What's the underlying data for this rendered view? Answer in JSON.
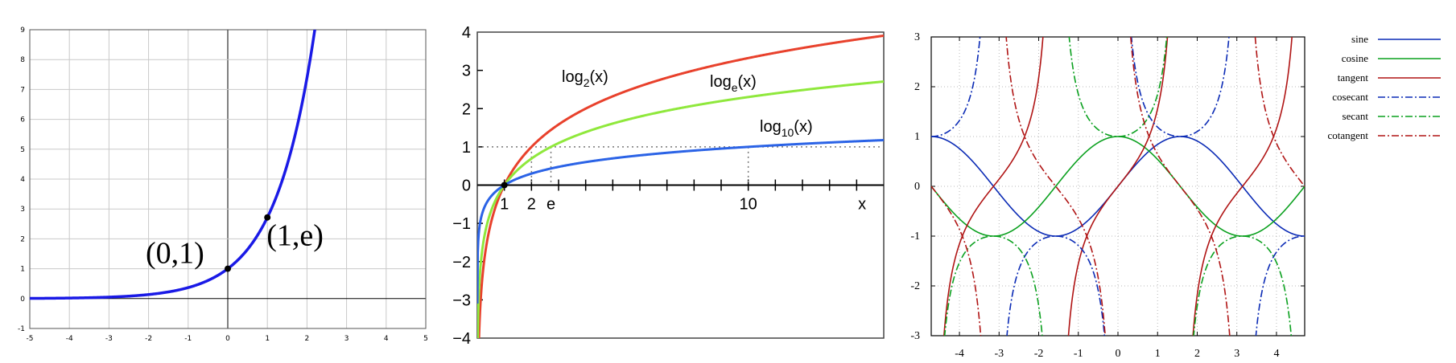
{
  "chart_data": [
    {
      "type": "line",
      "xlim": [
        -5,
        5
      ],
      "ylim": [
        -1,
        9
      ],
      "xticks": [
        "-5",
        "-4",
        "-3",
        "-2",
        "-1",
        "0",
        "1",
        "2",
        "3",
        "4",
        "5"
      ],
      "yticks": [
        "-1",
        "0",
        "1",
        "2",
        "3",
        "4",
        "5",
        "6",
        "7",
        "8",
        "9"
      ],
      "grid": true,
      "series": [
        {
          "function": "exp",
          "color": "#1a1ae6"
        }
      ],
      "points": [
        {
          "x": 0,
          "y": 1,
          "label": "(0,1)"
        },
        {
          "x": 1,
          "y": 2.718,
          "label": "(1,e)"
        }
      ]
    },
    {
      "type": "line",
      "xlim": [
        0,
        15
      ],
      "ylim": [
        -4,
        4
      ],
      "xtick_labels": [
        "1",
        "2",
        "e",
        "10",
        "x"
      ],
      "yticks": [
        "4",
        "3",
        "2",
        "1",
        "0",
        "−1",
        "−2",
        "−3",
        "−4"
      ],
      "series": [
        {
          "label_base": "log",
          "label_sub": "2",
          "label_tail": "(x)",
          "base": 2,
          "color": "#e8412c"
        },
        {
          "label_base": "log",
          "label_sub": "e",
          "label_tail": "(x)",
          "base": 2.718,
          "color": "#8fe83c"
        },
        {
          "label_base": "log",
          "label_sub": "10",
          "label_tail": "(x)",
          "base": 10,
          "color": "#2b63e6"
        }
      ]
    },
    {
      "type": "line",
      "xlim": [
        -4.712,
        4.712
      ],
      "ylim": [
        -3,
        3
      ],
      "xticks": [
        "-4",
        "-3",
        "-2",
        "-1",
        "0",
        "1",
        "2",
        "3",
        "4"
      ],
      "yticks": [
        "3",
        "2",
        "1",
        "0",
        "-1",
        "-2",
        "-3"
      ],
      "grid": true,
      "legend": "outside-right",
      "series": [
        {
          "name": "sine",
          "color": "#0a2ab5",
          "style": "solid"
        },
        {
          "name": "cosine",
          "color": "#0aa01e",
          "style": "solid"
        },
        {
          "name": "tangent",
          "color": "#b01414",
          "style": "solid"
        },
        {
          "name": "cosecant",
          "color": "#0a2ab5",
          "style": "dashdot"
        },
        {
          "name": "secant",
          "color": "#0aa01e",
          "style": "dashdot"
        },
        {
          "name": "cotangent",
          "color": "#b01414",
          "style": "dashdot"
        }
      ]
    }
  ]
}
